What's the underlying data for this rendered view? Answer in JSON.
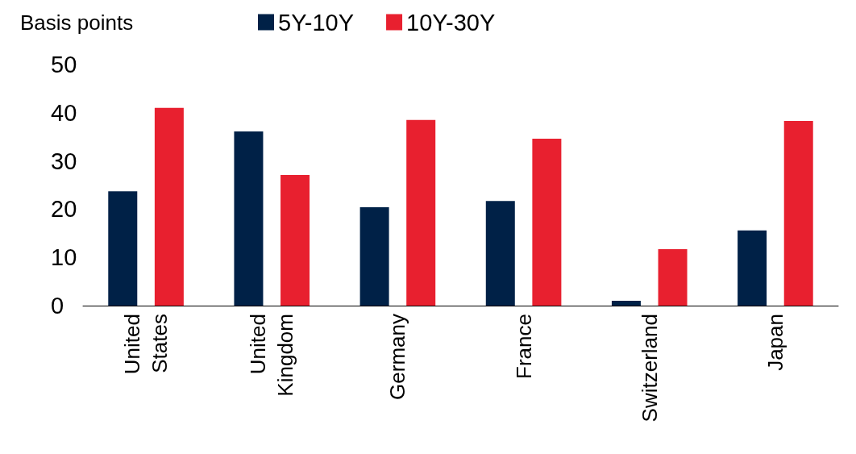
{
  "chart_data": {
    "type": "bar",
    "ylabel": "Basis points",
    "categories": [
      "United States",
      "United Kingdom",
      "Germany",
      "France",
      "Switzerland",
      "Japan"
    ],
    "series": [
      {
        "name": "5Y-10Y",
        "color": "#002147",
        "values": [
          23.7,
          36.1,
          20.4,
          21.7,
          1.0,
          15.6
        ]
      },
      {
        "name": "10Y-30Y",
        "color": "#e8202f",
        "values": [
          41.0,
          27.1,
          38.5,
          34.6,
          11.7,
          38.3
        ]
      }
    ],
    "ylim": [
      0,
      50
    ],
    "yticks": [
      0,
      10,
      20,
      30,
      40,
      50
    ],
    "grid": false,
    "legend": "top"
  }
}
